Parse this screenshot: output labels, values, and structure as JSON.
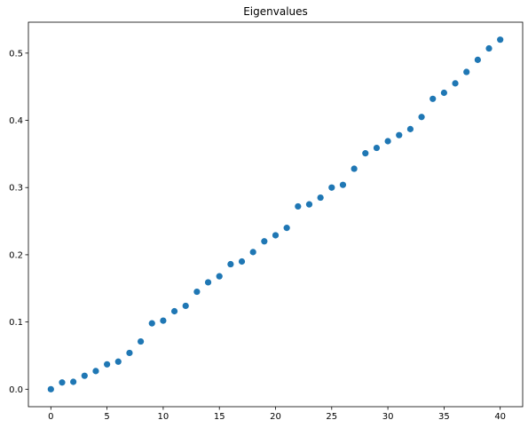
{
  "chart_data": {
    "type": "scatter",
    "title": "Eigenvalues",
    "xlabel": "",
    "ylabel": "",
    "xlim": [
      -2,
      42
    ],
    "ylim": [
      -0.026,
      0.546
    ],
    "xticks": [
      0,
      5,
      10,
      15,
      20,
      25,
      30,
      35,
      40
    ],
    "xtick_labels": [
      "0",
      "5",
      "10",
      "15",
      "20",
      "25",
      "30",
      "35",
      "40"
    ],
    "yticks": [
      0.0,
      0.1,
      0.2,
      0.3,
      0.4,
      0.5
    ],
    "ytick_labels": [
      "0.0",
      "0.1",
      "0.2",
      "0.3",
      "0.4",
      "0.5"
    ],
    "grid": false,
    "legend": "none",
    "color": "#1f77b4",
    "series": [
      {
        "x": [
          0,
          1,
          2,
          3,
          4,
          5,
          6,
          7,
          8,
          9,
          10,
          11,
          12,
          13,
          14,
          15,
          16,
          17,
          18,
          19,
          20,
          21,
          22,
          23,
          24,
          25,
          26,
          27,
          28,
          29,
          30,
          31,
          32,
          33,
          34,
          35,
          36,
          37,
          38,
          39,
          40
        ],
        "values": [
          0.0,
          0.01,
          0.011,
          0.02,
          0.027,
          0.037,
          0.041,
          0.054,
          0.071,
          0.098,
          0.102,
          0.116,
          0.124,
          0.145,
          0.159,
          0.168,
          0.186,
          0.19,
          0.204,
          0.22,
          0.229,
          0.24,
          0.272,
          0.275,
          0.285,
          0.3,
          0.304,
          0.328,
          0.351,
          0.359,
          0.369,
          0.378,
          0.387,
          0.405,
          0.432,
          0.441,
          0.455,
          0.472,
          0.49,
          0.507,
          0.52
        ]
      }
    ]
  }
}
